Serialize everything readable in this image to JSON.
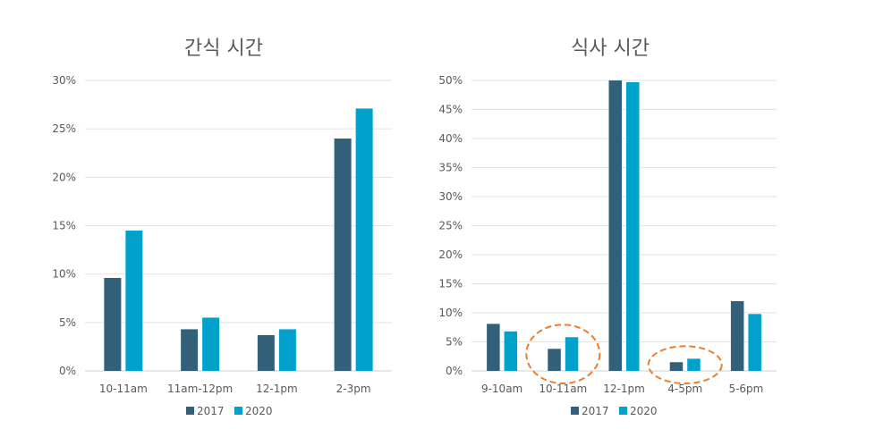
{
  "colors": {
    "s2017": "#336079",
    "s2020": "#00a2cc",
    "highlight": "#ed7d31"
  },
  "chart_data": [
    {
      "type": "bar",
      "title": "간식 시간",
      "categories": [
        "10-11am",
        "11am-12pm",
        "12-1pm",
        "2-3pm"
      ],
      "series": [
        {
          "name": "2017",
          "values": [
            9.6,
            4.3,
            3.7,
            24.0
          ]
        },
        {
          "name": "2020",
          "values": [
            14.5,
            5.5,
            4.3,
            27.1
          ]
        }
      ],
      "ylim": [
        0,
        30
      ],
      "yticks": [
        "0%",
        "5%",
        "10%",
        "15%",
        "20%",
        "25%",
        "30%"
      ],
      "ytick_values": [
        0,
        5,
        10,
        15,
        20,
        25,
        30
      ],
      "grid": true,
      "legend": "bottom"
    },
    {
      "type": "bar",
      "title": "식사 시간",
      "categories": [
        "9-10am",
        "10-11am",
        "12-1pm",
        "4-5pm",
        "5-6pm"
      ],
      "series": [
        {
          "name": "2017",
          "values": [
            8.1,
            3.8,
            50.0,
            1.5,
            12.0
          ]
        },
        {
          "name": "2020",
          "values": [
            6.8,
            5.8,
            49.7,
            2.1,
            9.8
          ]
        }
      ],
      "ylim": [
        0,
        50
      ],
      "yticks": [
        "0%",
        "5%",
        "10%",
        "15%",
        "20%",
        "25%",
        "30%",
        "35%",
        "40%",
        "45%",
        "50%"
      ],
      "ytick_values": [
        0,
        5,
        10,
        15,
        20,
        25,
        30,
        35,
        40,
        45,
        50
      ],
      "grid": true,
      "legend": "bottom",
      "highlighted_categories": [
        "10-11am",
        "4-5pm"
      ]
    }
  ]
}
